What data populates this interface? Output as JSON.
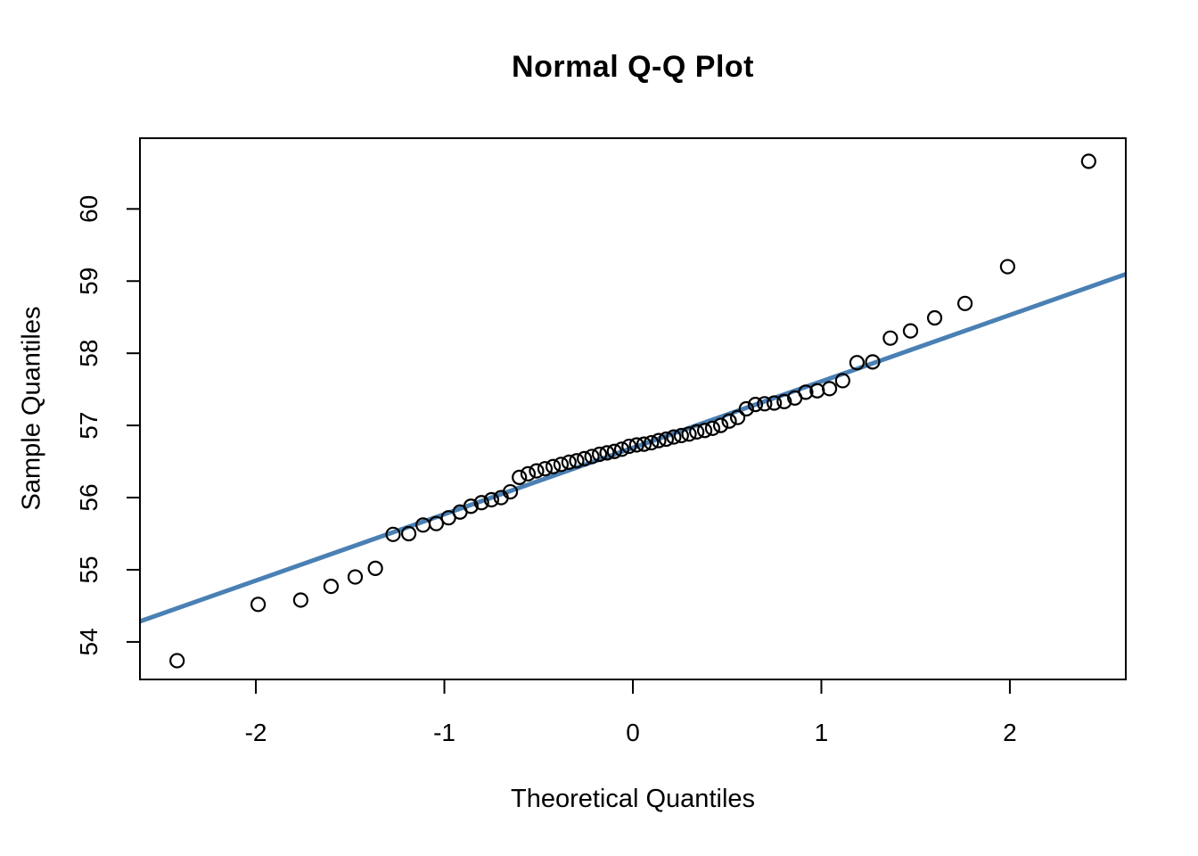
{
  "chart_data": {
    "type": "scatter",
    "title": "Normal Q-Q Plot",
    "xlabel": "Theoretical Quantiles",
    "ylabel": "Sample Quantiles",
    "x_ticks": [
      -2,
      -1,
      0,
      1,
      2
    ],
    "y_ticks": [
      54,
      55,
      56,
      57,
      58,
      59,
      60
    ],
    "xlim": [
      -2.615,
      2.615
    ],
    "ylim": [
      53.48,
      60.98
    ],
    "grid": false,
    "legend": "none",
    "n_points": 64,
    "points": {
      "theoretical": [
        -2.418,
        -1.988,
        -1.762,
        -1.601,
        -1.473,
        -1.366,
        -1.272,
        -1.189,
        -1.113,
        -1.043,
        -0.978,
        -0.917,
        -0.859,
        -0.803,
        -0.75,
        -0.699,
        -0.65,
        -0.602,
        -0.556,
        -0.511,
        -0.466,
        -0.423,
        -0.381,
        -0.339,
        -0.298,
        -0.257,
        -0.217,
        -0.177,
        -0.137,
        -0.098,
        -0.059,
        -0.02,
        0.02,
        0.059,
        0.098,
        0.137,
        0.177,
        0.217,
        0.257,
        0.298,
        0.339,
        0.381,
        0.423,
        0.466,
        0.511,
        0.556,
        0.602,
        0.65,
        0.699,
        0.75,
        0.803,
        0.859,
        0.917,
        0.978,
        1.043,
        1.113,
        1.189,
        1.272,
        1.366,
        1.473,
        1.601,
        1.762,
        1.988,
        2.418
      ],
      "sample": [
        53.74,
        54.52,
        54.58,
        54.77,
        54.9,
        55.02,
        55.49,
        55.5,
        55.62,
        55.64,
        55.72,
        55.8,
        55.88,
        55.93,
        55.97,
        56.0,
        56.08,
        56.28,
        56.33,
        56.37,
        56.4,
        56.43,
        56.46,
        56.49,
        56.51,
        56.54,
        56.57,
        56.6,
        56.62,
        56.64,
        56.67,
        56.71,
        56.73,
        56.74,
        56.76,
        56.79,
        56.81,
        56.84,
        56.86,
        56.88,
        56.91,
        56.93,
        56.96,
        57.0,
        57.06,
        57.11,
        57.23,
        57.29,
        57.3,
        57.31,
        57.33,
        57.38,
        57.46,
        57.48,
        57.51,
        57.62,
        57.87,
        57.88,
        58.21,
        58.31,
        58.49,
        58.69,
        59.2,
        60.66
      ]
    },
    "reference_line": {
      "intercept": 56.69,
      "slope": 0.92,
      "color": "#4a80b4",
      "stroke_width": 5
    },
    "point_style": {
      "shape": "open-circle",
      "stroke_color": "#000000",
      "radius": 7.5,
      "stroke_width": 2.2
    },
    "axis_style": {
      "color": "#000000",
      "box": true,
      "tick_font_size": 28
    },
    "background": "#ffffff"
  }
}
